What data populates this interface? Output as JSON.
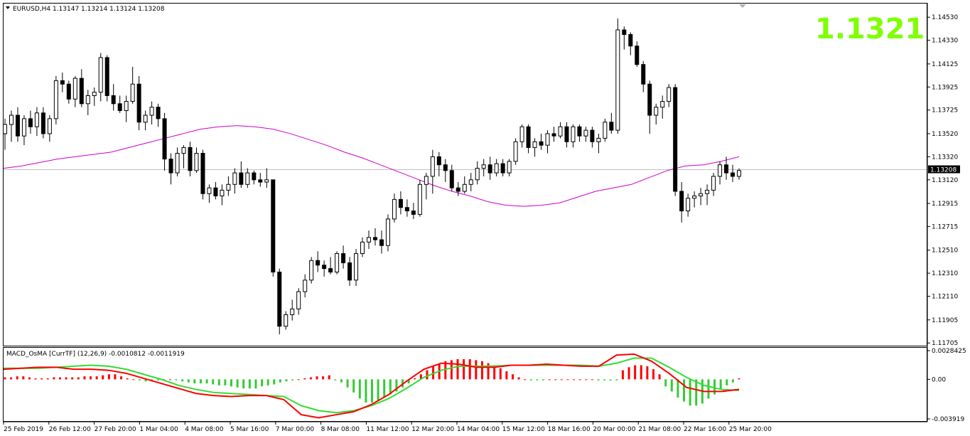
{
  "header": {
    "symbol_line": "EURUSD,H4  1.13147 1.13214 1.13124 1.13208",
    "big_price": "1.1321"
  },
  "sub_header": {
    "label": "MACD_OsMA [CurrTF] (12,26,9) -0.0010812 -0.0011919"
  },
  "colors": {
    "bull_candle": "#ffffff",
    "bear_candle": "#000000",
    "ma_line": "#cc00cc",
    "macd_line": "#ff0000",
    "signal_line": "#33dd33",
    "hist_pos": "#ff0000",
    "hist_neg": "#33cc33",
    "big_price": "#7fff00"
  },
  "chart_data": [
    {
      "type": "candlestick",
      "symbol": "EURUSD",
      "timeframe": "H4",
      "ylim": [
        1.117,
        1.1463
      ],
      "y_ticks": [
        "1.14530",
        "1.14330",
        "1.14125",
        "1.13925",
        "1.13725",
        "1.13520",
        "1.13320",
        "1.13120",
        "1.12915",
        "1.12715",
        "1.12510",
        "1.12310",
        "1.12110",
        "1.11905",
        "1.11705"
      ],
      "current_price_label": "1.13208",
      "current_price": 1.13208,
      "x_ticks": [
        "25 Feb 2019",
        "26 Feb 12:00",
        "27 Feb 20:00",
        "1 Mar 04:00",
        "4 Mar 08:00",
        "5 Mar 16:00",
        "7 Mar 00:00",
        "8 Mar 08:00",
        "11 Mar 12:00",
        "12 Mar 20:00",
        "14 Mar 04:00",
        "15 Mar 12:00",
        "18 Mar 16:00",
        "20 Mar 00:00",
        "21 Mar 08:00",
        "22 Mar 16:00",
        "25 Mar 20:00"
      ],
      "candles": [
        [
          1.1352,
          1.1365,
          1.1338,
          1.136
        ],
        [
          1.136,
          1.1372,
          1.1345,
          1.1368
        ],
        [
          1.1368,
          1.1375,
          1.1345,
          1.135
        ],
        [
          1.135,
          1.1368,
          1.1342,
          1.1365
        ],
        [
          1.1365,
          1.1372,
          1.1352,
          1.1358
        ],
        [
          1.1358,
          1.1375,
          1.135,
          1.137
        ],
        [
          1.137,
          1.1375,
          1.1348,
          1.1352
        ],
        [
          1.1352,
          1.1368,
          1.1345,
          1.1365
        ],
        [
          1.1365,
          1.1402,
          1.136,
          1.1398
        ],
        [
          1.1398,
          1.1405,
          1.1388,
          1.1395
        ],
        [
          1.1395,
          1.1398,
          1.1378,
          1.1382
        ],
        [
          1.1382,
          1.1402,
          1.1375,
          1.14
        ],
        [
          1.14,
          1.1408,
          1.1375,
          1.1378
        ],
        [
          1.1378,
          1.139,
          1.1368,
          1.1385
        ],
        [
          1.1385,
          1.1392,
          1.1376,
          1.1388
        ],
        [
          1.1388,
          1.1422,
          1.138,
          1.1418
        ],
        [
          1.1418,
          1.142,
          1.138,
          1.1385
        ],
        [
          1.1385,
          1.1395,
          1.1372,
          1.1378
        ],
        [
          1.1378,
          1.1385,
          1.137,
          1.1372
        ],
        [
          1.1372,
          1.1385,
          1.1362,
          1.138
        ],
        [
          1.138,
          1.141,
          1.1378,
          1.1395
        ],
        [
          1.1395,
          1.1402,
          1.1355,
          1.1362
        ],
        [
          1.1362,
          1.1372,
          1.1355,
          1.1368
        ],
        [
          1.1368,
          1.138,
          1.136,
          1.1375
        ],
        [
          1.1375,
          1.1378,
          1.1358,
          1.1365
        ],
        [
          1.1365,
          1.137,
          1.132,
          1.133
        ],
        [
          1.133,
          1.1335,
          1.1308,
          1.1318
        ],
        [
          1.1318,
          1.134,
          1.1315,
          1.1335
        ],
        [
          1.1335,
          1.1342,
          1.1322,
          1.134
        ],
        [
          1.134,
          1.1345,
          1.1315,
          1.132
        ],
        [
          1.132,
          1.134,
          1.1318,
          1.1335
        ],
        [
          1.1335,
          1.1338,
          1.1295,
          1.13
        ],
        [
          1.13,
          1.1308,
          1.1292,
          1.1305
        ],
        [
          1.1305,
          1.131,
          1.1295,
          1.1298
        ],
        [
          1.1298,
          1.1308,
          1.129,
          1.1303
        ],
        [
          1.1303,
          1.1315,
          1.1298,
          1.1308
        ],
        [
          1.1308,
          1.1322,
          1.13,
          1.1318
        ],
        [
          1.1318,
          1.1328,
          1.1305,
          1.1308
        ],
        [
          1.1308,
          1.1322,
          1.1305,
          1.1318
        ],
        [
          1.1318,
          1.132,
          1.1308,
          1.1312
        ],
        [
          1.1312,
          1.1318,
          1.1306,
          1.131
        ],
        [
          1.131,
          1.1322,
          1.1305,
          1.1312
        ],
        [
          1.1312,
          1.1312,
          1.1228,
          1.1232
        ],
        [
          1.1232,
          1.1235,
          1.1178,
          1.1185
        ],
        [
          1.1185,
          1.1198,
          1.1182,
          1.1195
        ],
        [
          1.1195,
          1.1208,
          1.119,
          1.12
        ],
        [
          1.12,
          1.1218,
          1.1195,
          1.1215
        ],
        [
          1.1215,
          1.123,
          1.121,
          1.1225
        ],
        [
          1.1225,
          1.1245,
          1.1222,
          1.1242
        ],
        [
          1.1242,
          1.125,
          1.1232,
          1.1238
        ],
        [
          1.1238,
          1.1242,
          1.1228,
          1.1235
        ],
        [
          1.1235,
          1.1245,
          1.123,
          1.1232
        ],
        [
          1.1232,
          1.125,
          1.123,
          1.1248
        ],
        [
          1.1248,
          1.1255,
          1.1235,
          1.124
        ],
        [
          1.124,
          1.1245,
          1.122,
          1.1225
        ],
        [
          1.1225,
          1.1252,
          1.122,
          1.1248
        ],
        [
          1.1248,
          1.1262,
          1.1245,
          1.1258
        ],
        [
          1.1258,
          1.1268,
          1.1252,
          1.1262
        ],
        [
          1.1262,
          1.127,
          1.1255,
          1.126
        ],
        [
          1.126,
          1.1268,
          1.1248,
          1.1255
        ],
        [
          1.1255,
          1.1282,
          1.125,
          1.1278
        ],
        [
          1.1278,
          1.13,
          1.1275,
          1.1295
        ],
        [
          1.1295,
          1.1302,
          1.1282,
          1.1288
        ],
        [
          1.1288,
          1.1295,
          1.128,
          1.1285
        ],
        [
          1.1285,
          1.1292,
          1.1278,
          1.1282
        ],
        [
          1.1282,
          1.1312,
          1.128,
          1.1308
        ],
        [
          1.1308,
          1.1318,
          1.1295,
          1.1315
        ],
        [
          1.1315,
          1.1338,
          1.13,
          1.1332
        ],
        [
          1.1332,
          1.1336,
          1.1315,
          1.1325
        ],
        [
          1.1325,
          1.133,
          1.131,
          1.132
        ],
        [
          1.132,
          1.1325,
          1.1302,
          1.1305
        ],
        [
          1.1305,
          1.131,
          1.1298,
          1.1302
        ],
        [
          1.1302,
          1.1315,
          1.13,
          1.1308
        ],
        [
          1.1308,
          1.1318,
          1.1302,
          1.1312
        ],
        [
          1.1312,
          1.1328,
          1.1308,
          1.1322
        ],
        [
          1.1322,
          1.133,
          1.1315,
          1.1325
        ],
        [
          1.1325,
          1.1332,
          1.1312,
          1.1318
        ],
        [
          1.1318,
          1.133,
          1.1315,
          1.1326
        ],
        [
          1.1326,
          1.133,
          1.1315,
          1.1318
        ],
        [
          1.1318,
          1.133,
          1.1315,
          1.1328
        ],
        [
          1.1328,
          1.1348,
          1.1325,
          1.1345
        ],
        [
          1.1345,
          1.136,
          1.134,
          1.1358
        ],
        [
          1.1358,
          1.136,
          1.1335,
          1.134
        ],
        [
          1.134,
          1.1348,
          1.1332,
          1.1345
        ],
        [
          1.1345,
          1.1352,
          1.1338,
          1.1342
        ],
        [
          1.1342,
          1.1355,
          1.1335,
          1.1352
        ],
        [
          1.1352,
          1.1358,
          1.1345,
          1.135
        ],
        [
          1.135,
          1.1362,
          1.1348,
          1.1358
        ],
        [
          1.1358,
          1.1362,
          1.134,
          1.1345
        ],
        [
          1.1345,
          1.136,
          1.134,
          1.1358
        ],
        [
          1.1358,
          1.136,
          1.1345,
          1.135
        ],
        [
          1.135,
          1.1358,
          1.1345,
          1.1355
        ],
        [
          1.1355,
          1.1358,
          1.134,
          1.1345
        ],
        [
          1.1345,
          1.1352,
          1.1335,
          1.1348
        ],
        [
          1.1348,
          1.1365,
          1.1345,
          1.1362
        ],
        [
          1.1362,
          1.137,
          1.1352,
          1.1355
        ],
        [
          1.1355,
          1.1452,
          1.1352,
          1.1442
        ],
        [
          1.1442,
          1.1445,
          1.1425,
          1.1438
        ],
        [
          1.1438,
          1.144,
          1.142,
          1.1428
        ],
        [
          1.1428,
          1.1432,
          1.141,
          1.1412
        ],
        [
          1.1412,
          1.1415,
          1.1388,
          1.1395
        ],
        [
          1.1395,
          1.1398,
          1.1352,
          1.1368
        ],
        [
          1.1368,
          1.1378,
          1.136,
          1.1375
        ],
        [
          1.1375,
          1.1385,
          1.1365,
          1.138
        ],
        [
          1.138,
          1.1395,
          1.1375,
          1.1392
        ],
        [
          1.1392,
          1.1395,
          1.1298,
          1.1302
        ],
        [
          1.1302,
          1.131,
          1.1275,
          1.1285
        ],
        [
          1.1285,
          1.13,
          1.128,
          1.1296
        ],
        [
          1.1296,
          1.1302,
          1.1288,
          1.1298
        ],
        [
          1.1298,
          1.1305,
          1.129,
          1.13
        ],
        [
          1.13,
          1.1308,
          1.129,
          1.1303
        ],
        [
          1.1303,
          1.1318,
          1.1298,
          1.1315
        ],
        [
          1.1315,
          1.1328,
          1.1308,
          1.1325
        ],
        [
          1.1325,
          1.1332,
          1.1312,
          1.1318
        ],
        [
          1.1318,
          1.1325,
          1.131,
          1.1315
        ],
        [
          1.1315,
          1.1322,
          1.1312,
          1.132
        ]
      ],
      "ma": [
        1.1322,
        1.1324,
        1.1327,
        1.133,
        1.1332,
        1.1334,
        1.1336,
        1.134,
        1.1344,
        1.1348,
        1.1352,
        1.1356,
        1.1358,
        1.1359,
        1.1358,
        1.1356,
        1.1352,
        1.1347,
        1.1342,
        1.1336,
        1.1331,
        1.1325,
        1.1319,
        1.1313,
        1.1307,
        1.1302,
        1.1298,
        1.1293,
        1.129,
        1.1289,
        1.129,
        1.1292,
        1.1297,
        1.1302,
        1.1305,
        1.1308,
        1.1314,
        1.132,
        1.1324,
        1.1325,
        1.1328,
        1.1332
      ],
      "macd_ylim": [
        -0.003919,
        0.002842
      ],
      "macd_y_ticks": [
        "0.0028425",
        "0.00",
        "-0.003919"
      ],
      "macd": [
        0.001,
        0.0011,
        0.0012,
        0.0012,
        0.001,
        0.001,
        0.0009,
        0.0006,
        0.0001,
        -0.0004,
        -0.0009,
        -0.0014,
        -0.0016,
        -0.0017,
        -0.0016,
        -0.0016,
        -0.002,
        -0.0035,
        -0.0038,
        -0.0035,
        -0.0032,
        -0.0025,
        -0.0015,
        -0.0002,
        0.001,
        0.0016,
        0.0015,
        0.0012,
        0.0012,
        0.0014,
        0.0014,
        0.0015,
        0.0014,
        0.0013,
        0.0013,
        0.0024,
        0.0025,
        0.0018,
        0.0006,
        -0.0008,
        -0.0012,
        -0.0012,
        -0.001
      ],
      "signal": [
        0.0011,
        0.0011,
        0.0011,
        0.0012,
        0.0013,
        0.0014,
        0.0013,
        0.001,
        0.0005,
        0.0,
        -0.0006,
        -0.001,
        -0.0013,
        -0.0014,
        -0.0015,
        -0.0016,
        -0.0017,
        -0.0026,
        -0.0031,
        -0.0033,
        -0.0031,
        -0.0026,
        -0.0019,
        -0.0009,
        0.0002,
        0.0009,
        0.0013,
        0.0013,
        0.0013,
        0.0014,
        0.0014,
        0.0014,
        0.0014,
        0.0014,
        0.0013,
        0.0016,
        0.0021,
        0.0021,
        0.0012,
        0.0002,
        -0.0006,
        -0.001,
        -0.0011
      ],
      "histogram": [
        0.0002,
        0.0002,
        0.0003,
        0.0003,
        0.0002,
        0.0001,
        0.0001,
        0.0001,
        0.0002,
        0.0002,
        0.0002,
        0.0002,
        0.0002,
        0.0003,
        0.0003,
        0.0003,
        0.0004,
        0.0005,
        0.0005,
        0.0003,
        0.0001,
        0.0,
        -0.0001,
        -0.0002,
        -0.0002,
        -0.0001,
        0.0,
        0.0,
        -0.0001,
        -0.0002,
        -0.0003,
        -0.0004,
        -0.0004,
        -0.0004,
        -0.0005,
        -0.0006,
        -0.0006,
        -0.0007,
        -0.0008,
        -0.0009,
        -0.0009,
        -0.0009,
        -0.0007,
        -0.0006,
        -0.0005,
        -0.0003,
        -0.0002,
        -0.0001,
        0.0,
        0.0001,
        0.0002,
        0.0003,
        0.0003,
        0.0004,
        -0.0001,
        -0.0003,
        -0.0008,
        -0.0013,
        -0.0019,
        -0.0023,
        -0.0023,
        -0.0021,
        -0.0018,
        -0.0015,
        -0.0012,
        -0.0008,
        -0.0004,
        0.0001,
        0.0005,
        0.0009,
        0.0013,
        0.0015,
        0.0018,
        0.0019,
        0.002,
        0.002,
        0.002,
        0.0019,
        0.0018,
        0.0016,
        0.0014,
        0.0011,
        0.0008,
        0.0005,
        0.0002,
        0.0,
        -0.0001,
        -0.0001,
        -0.0001,
        0.0,
        0.0,
        0.0,
        0.0,
        0.0,
        0.0,
        0.0,
        0.0,
        -0.0001,
        -0.0001,
        -0.0001,
        -0.0001,
        0.0009,
        0.0012,
        0.0014,
        0.0014,
        0.0013,
        0.001,
        0.0005,
        -0.0007,
        -0.0012,
        -0.0018,
        -0.0022,
        -0.0026,
        -0.0026,
        -0.0024,
        -0.0019,
        -0.0015,
        -0.001,
        -0.0006,
        -0.0003,
        0.0001
      ]
    }
  ]
}
